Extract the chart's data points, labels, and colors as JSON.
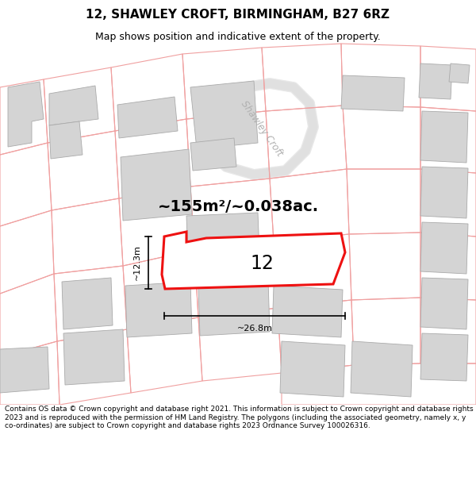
{
  "title_line1": "12, SHAWLEY CROFT, BIRMINGHAM, B27 6RZ",
  "title_line2": "Map shows position and indicative extent of the property.",
  "area_text": "~155m²/~0.038ac.",
  "number_label": "12",
  "dim_width": "~26.8m",
  "dim_height": "~12.3m",
  "footer_text": "Contains OS data © Crown copyright and database right 2021. This information is subject to Crown copyright and database rights 2023 and is reproduced with the permission of HM Land Registry. The polygons (including the associated geometry, namely x, y co-ordinates) are subject to Crown copyright and database rights 2023 Ordnance Survey 100026316.",
  "bg_color": "#ffffff",
  "map_bg": "#f7f6f4",
  "building_color": "#d4d4d4",
  "building_edge": "#aaaaaa",
  "plot_line_color": "#ee1111",
  "road_name": "Shawley Croft",
  "light_line_color": "#f0a0a0",
  "title_fontsize": 11,
  "subtitle_fontsize": 9,
  "footer_fontsize": 6.5
}
